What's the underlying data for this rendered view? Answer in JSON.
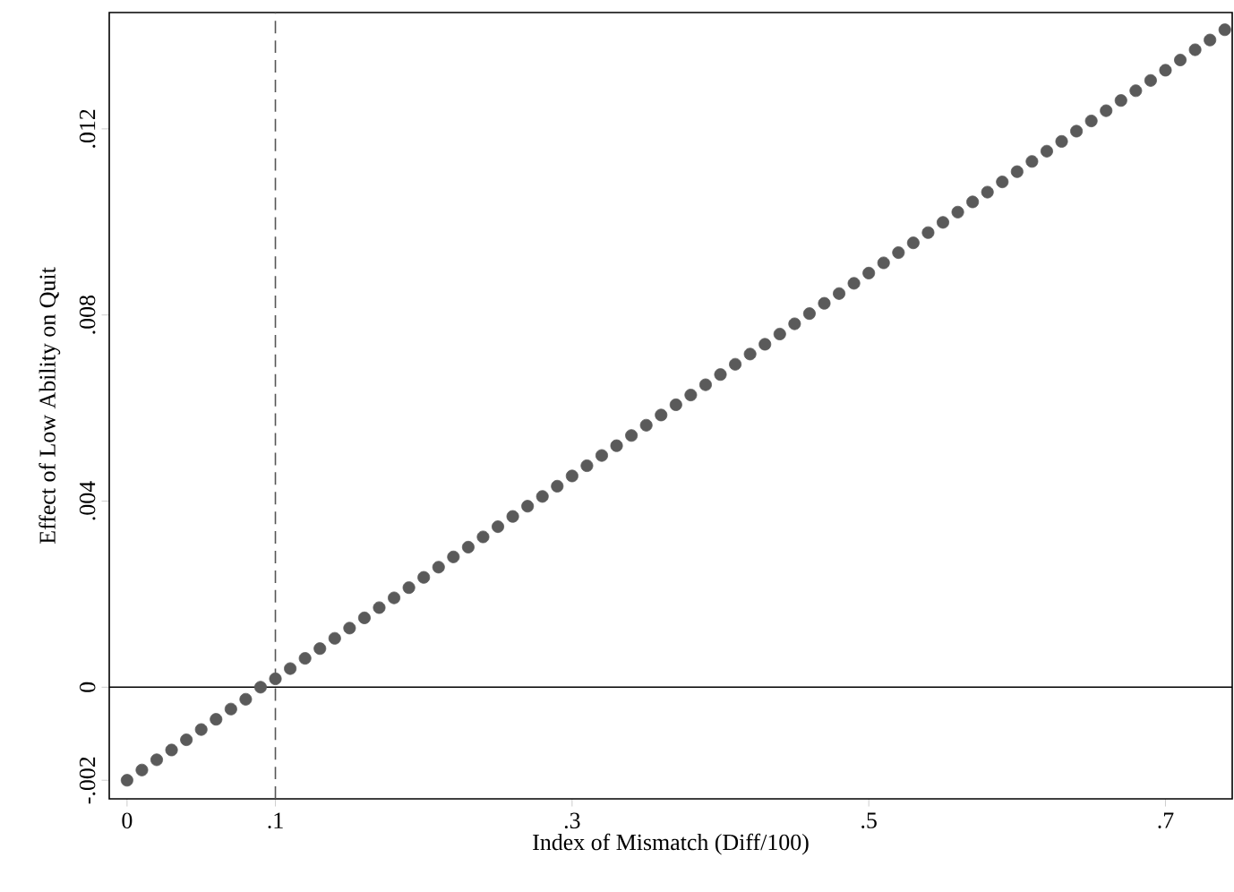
{
  "chart_data": {
    "type": "scatter",
    "xlabel": "Index of Mismatch (Diff/100)",
    "ylabel": "Effect of Low Ability on Quit",
    "marker": "circle",
    "color": "#5a5a5a",
    "x": [
      0,
      0.01,
      0.02,
      0.03,
      0.04,
      0.05,
      0.06,
      0.07,
      0.08,
      0.09,
      0.1,
      0.11,
      0.12,
      0.13,
      0.14,
      0.15,
      0.16,
      0.17,
      0.18,
      0.19,
      0.2,
      0.21,
      0.22,
      0.23,
      0.24,
      0.25,
      0.26,
      0.27,
      0.28,
      0.29,
      0.3,
      0.31,
      0.32,
      0.33,
      0.34,
      0.35,
      0.36,
      0.37,
      0.38,
      0.39,
      0.4,
      0.41,
      0.42,
      0.43,
      0.44,
      0.45,
      0.46,
      0.47,
      0.48,
      0.49,
      0.5,
      0.51,
      0.52,
      0.53,
      0.54,
      0.55,
      0.56,
      0.57,
      0.58,
      0.59,
      0.6,
      0.61,
      0.62,
      0.63,
      0.64,
      0.65,
      0.66,
      0.67,
      0.68,
      0.69,
      0.7,
      0.71,
      0.72,
      0.73,
      0.74
    ],
    "values": [
      -0.002,
      -0.00178,
      -0.00156,
      -0.00135,
      -0.00113,
      -0.00091,
      -0.00069,
      -0.00047,
      -0.00026,
      0,
      0.00018,
      0.0004,
      0.00062,
      0.00083,
      0.00105,
      0.00127,
      0.00149,
      0.00171,
      0.00192,
      0.00214,
      0.00236,
      0.00258,
      0.0028,
      0.00301,
      0.00323,
      0.00345,
      0.00367,
      0.00389,
      0.0041,
      0.00432,
      0.00454,
      0.00476,
      0.00498,
      0.00519,
      0.00541,
      0.00563,
      0.00585,
      0.00607,
      0.00628,
      0.0065,
      0.00672,
      0.00694,
      0.00716,
      0.00737,
      0.00759,
      0.00781,
      0.00803,
      0.00825,
      0.00846,
      0.00868,
      0.0089,
      0.00912,
      0.00934,
      0.00955,
      0.00977,
      0.00999,
      0.01021,
      0.01043,
      0.01064,
      0.01086,
      0.01108,
      0.0113,
      0.01152,
      0.01173,
      0.01195,
      0.01217,
      0.01239,
      0.01261,
      0.01282,
      0.01304,
      0.01326,
      0.01348,
      0.0137,
      0.01391,
      0.01413
    ],
    "xlim": [
      -0.012,
      0.745
    ],
    "ylim": [
      -0.0024,
      0.0145
    ],
    "xticks": [
      {
        "value": 0,
        "label": "0"
      },
      {
        "value": 0.1,
        "label": ".1"
      },
      {
        "value": 0.3,
        "label": ".3"
      },
      {
        "value": 0.5,
        "label": ".5"
      },
      {
        "value": 0.7,
        "label": ".7"
      }
    ],
    "yticks": [
      {
        "value": -0.002,
        "label": "-.002"
      },
      {
        "value": 0,
        "label": "0"
      },
      {
        "value": 0.004,
        "label": ".004"
      },
      {
        "value": 0.008,
        "label": ".008"
      },
      {
        "value": 0.012,
        "label": ".012"
      }
    ],
    "ref_lines": [
      {
        "axis": "y",
        "value": 0,
        "color": "#000000",
        "line_style": "solid"
      },
      {
        "axis": "x",
        "value": 0.1,
        "color": "#555555",
        "line_style": "dashed"
      }
    ],
    "grid": false
  }
}
